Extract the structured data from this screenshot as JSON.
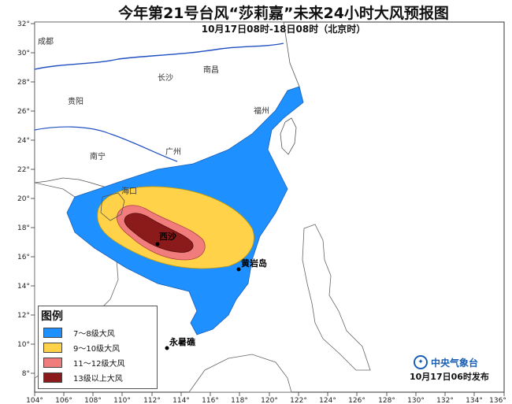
{
  "title": "今年第21号台风“莎莉嘉”未来24小时大风预报图",
  "subtitle": "10月17日08时-18日08时（北京时）",
  "legend": {
    "title": "图例",
    "items": [
      {
        "label": "7～8级大风",
        "color": "#1e90ff"
      },
      {
        "label": "9～10级大风",
        "color": "#ffd24a"
      },
      {
        "label": "11～12级大风",
        "color": "#f07c7c"
      },
      {
        "label": "13级以上大风",
        "color": "#8b1a1a"
      }
    ]
  },
  "axes": {
    "lon_labels": [
      "104°",
      "106°",
      "108°",
      "110°",
      "112°",
      "114°",
      "116°",
      "118°",
      "120°",
      "122°",
      "124°",
      "126°",
      "128°",
      "130°",
      "132°",
      "134°",
      "136°"
    ],
    "lat_labels": [
      "32°",
      "30°",
      "28°",
      "26°",
      "24°",
      "22°",
      "20°",
      "18°",
      "16°",
      "14°",
      "12°",
      "10°",
      "8°"
    ]
  },
  "places": {
    "chengdu": "成都",
    "changsha": "长沙",
    "nanchang": "南昌",
    "guiyang": "贵阳",
    "fuzhou": "福州",
    "guangzhou": "广州",
    "nanning": "南宁",
    "haikou": "海口",
    "xisha": "西沙",
    "huangyan": "黄岩岛",
    "yongshu": "永暑礁"
  },
  "issuer": "中央气象台",
  "issue_time": "10月17日06时发布"
}
